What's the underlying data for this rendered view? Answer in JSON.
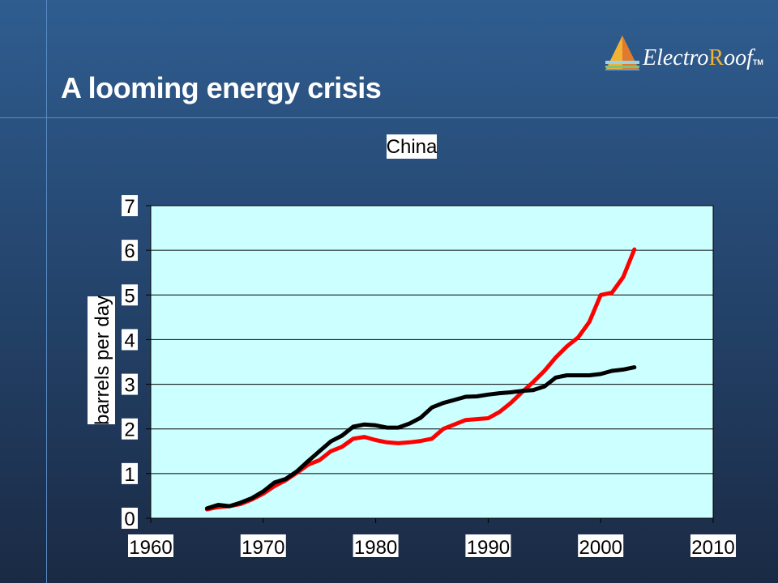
{
  "slide": {
    "title": "A looming energy crisis",
    "logo": {
      "prefix": "Electro",
      "suffix": "oof",
      "tm": "TM",
      "bolt_letter": "R"
    }
  },
  "colors": {
    "plot_background": "#ccffff",
    "series_red": "#ff0000",
    "series_black": "#000000",
    "logo_bolt": "#f2b233"
  },
  "chart_data": {
    "type": "line",
    "title": "China",
    "xlabel": "",
    "ylabel": "barrels per day",
    "xlim": [
      1960,
      2010
    ],
    "ylim": [
      0,
      7
    ],
    "x_ticks": [
      "1960",
      "1970",
      "1980",
      "1990",
      "2000",
      "2010"
    ],
    "y_ticks": [
      "0",
      "1",
      "2",
      "3",
      "4",
      "5",
      "6",
      "7"
    ],
    "grid": "horizontal",
    "legend": "none",
    "series": [
      {
        "color": "#ff0000",
        "x": [
          1965,
          1966,
          1967,
          1968,
          1969,
          1970,
          1971,
          1972,
          1973,
          1974,
          1975,
          1976,
          1977,
          1978,
          1979,
          1980,
          1981,
          1982,
          1983,
          1984,
          1985,
          1986,
          1987,
          1988,
          1989,
          1990,
          1991,
          1992,
          1993,
          1994,
          1995,
          1996,
          1997,
          1998,
          1999,
          2000,
          2001,
          2002,
          2003
        ],
        "y": [
          0.2,
          0.25,
          0.27,
          0.32,
          0.42,
          0.55,
          0.72,
          0.85,
          1.02,
          1.2,
          1.3,
          1.5,
          1.6,
          1.78,
          1.82,
          1.75,
          1.7,
          1.68,
          1.7,
          1.73,
          1.78,
          2.0,
          2.1,
          2.2,
          2.22,
          2.24,
          2.38,
          2.58,
          2.82,
          3.05,
          3.3,
          3.6,
          3.85,
          4.05,
          4.4,
          5.0,
          5.05,
          5.4,
          6.02
        ]
      },
      {
        "color": "#000000",
        "x": [
          1965,
          1966,
          1967,
          1968,
          1969,
          1970,
          1971,
          1972,
          1973,
          1974,
          1975,
          1976,
          1977,
          1978,
          1979,
          1980,
          1981,
          1982,
          1983,
          1984,
          1985,
          1986,
          1987,
          1988,
          1989,
          1990,
          1991,
          1992,
          1993,
          1994,
          1995,
          1996,
          1997,
          1998,
          1999,
          2000,
          2001,
          2002,
          2003
        ],
        "y": [
          0.22,
          0.3,
          0.27,
          0.35,
          0.45,
          0.6,
          0.8,
          0.88,
          1.05,
          1.28,
          1.5,
          1.72,
          1.85,
          2.05,
          2.1,
          2.08,
          2.03,
          2.03,
          2.12,
          2.25,
          2.48,
          2.58,
          2.65,
          2.72,
          2.73,
          2.77,
          2.8,
          2.82,
          2.85,
          2.87,
          2.95,
          3.15,
          3.2,
          3.2,
          3.2,
          3.23,
          3.3,
          3.33,
          3.38
        ]
      }
    ]
  }
}
